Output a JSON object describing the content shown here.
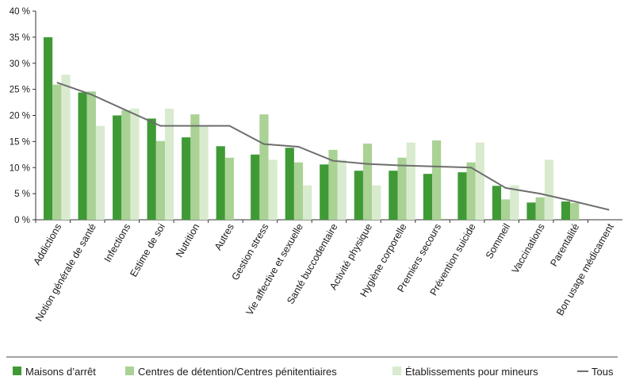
{
  "chart_data": {
    "type": "bar",
    "title": "",
    "xlabel": "",
    "ylabel": "",
    "ylim": [
      0,
      40
    ],
    "yticks": [
      0,
      5,
      10,
      15,
      20,
      25,
      30,
      35,
      40
    ],
    "ytick_labels": [
      "0 %",
      "5 %",
      "10 %",
      "15 %",
      "20 %",
      "25 %",
      "30 %",
      "35 %",
      "40 %"
    ],
    "grid": false,
    "legend_position": "bottom",
    "categories": [
      "Addictions",
      "Notion générale de santé",
      "Infections",
      "Estime de soi",
      "Nutrition",
      "Autres",
      "Gestion stress",
      "Vie affective et sexuelle",
      "Santé buccodentaire",
      "Activité physique",
      "Hygiène corporelle",
      "Premiers secours",
      "Prévention suicide",
      "Sommeil",
      "Vaccinations",
      "Parentalité",
      "Bon usage médicament"
    ],
    "series": [
      {
        "name": "Maisons d’arrêt",
        "type": "bar",
        "color": "#3f9a36",
        "values": [
          35.0,
          24.4,
          20.0,
          19.4,
          15.8,
          14.1,
          12.5,
          13.8,
          10.6,
          9.4,
          9.4,
          8.8,
          9.1,
          6.5,
          3.3,
          3.5,
          0
        ]
      },
      {
        "name": "Centres de détention/Centres pénitentiaires",
        "type": "bar",
        "color": "#a9d294",
        "values": [
          25.9,
          24.6,
          21.0,
          15.1,
          20.2,
          11.9,
          20.2,
          11.0,
          13.4,
          14.6,
          11.9,
          15.2,
          11.0,
          3.9,
          4.3,
          3.2,
          0
        ]
      },
      {
        "name": "Établissements pour mineurs",
        "type": "bar",
        "color": "#d9ebcf",
        "values": [
          27.8,
          18.0,
          21.3,
          21.3,
          18.0,
          0,
          11.5,
          6.6,
          11.5,
          6.6,
          14.8,
          0,
          14.8,
          6.6,
          11.5,
          0,
          0
        ]
      },
      {
        "name": "Tous",
        "type": "line",
        "color": "#6e6e6e",
        "values": [
          26.3,
          24.0,
          21.0,
          18.0,
          18.0,
          18.0,
          14.5,
          14.0,
          11.3,
          10.7,
          10.4,
          10.2,
          10.0,
          6.1,
          5.0,
          3.5,
          1.9
        ]
      }
    ]
  }
}
